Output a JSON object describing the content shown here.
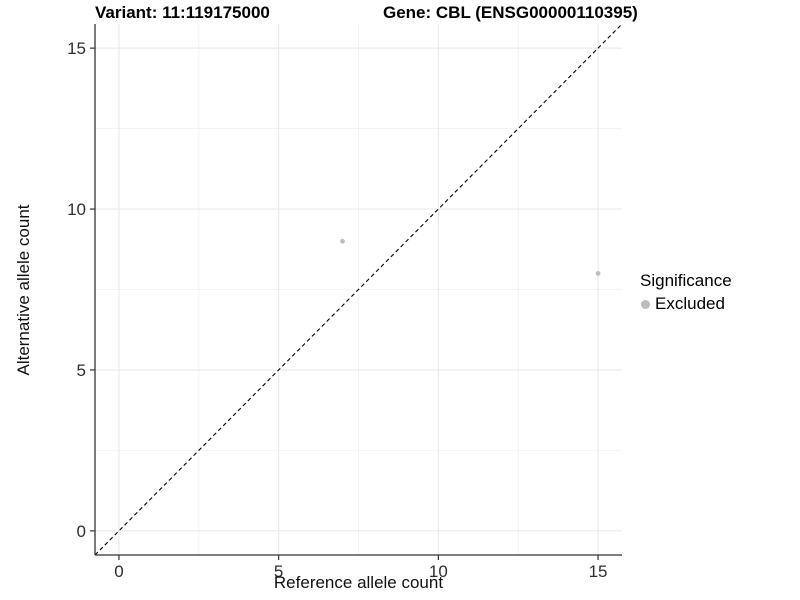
{
  "chart_data": {
    "type": "scatter",
    "titles": {
      "left": "Variant: 11:119175000",
      "right": "Gene: CBL (ENSG00000110395)"
    },
    "xlabel": "Reference allele count",
    "ylabel": "Alternative allele count",
    "xlim": [
      -0.75,
      15.75
    ],
    "ylim": [
      -0.75,
      15.75
    ],
    "xticks": [
      0,
      5,
      10,
      15
    ],
    "yticks": [
      0,
      5,
      10,
      15
    ],
    "xticks_minor": [
      2.5,
      7.5,
      12.5
    ],
    "yticks_minor": [
      2.5,
      7.5,
      12.5
    ],
    "grid": "major and minor gridlines on white panel",
    "identity_line": {
      "style": "dashed",
      "equation": "y = x",
      "color": "#000000"
    },
    "series": [
      {
        "name": "Excluded",
        "color": "#bdbdbd",
        "point_radius": 2.4,
        "points": [
          [
            7,
            9
          ],
          [
            15,
            8
          ]
        ]
      }
    ],
    "legend": {
      "title": "Significance",
      "position": "right",
      "items": [
        {
          "label": "Excluded",
          "color": "#bdbdbd"
        }
      ]
    },
    "colors": {
      "grid_major": "#e7e7e7",
      "grid_minor": "#f3f3f3",
      "axis": "#333333",
      "tick_label": "#2e2e2e",
      "title_text": "#000000"
    }
  }
}
